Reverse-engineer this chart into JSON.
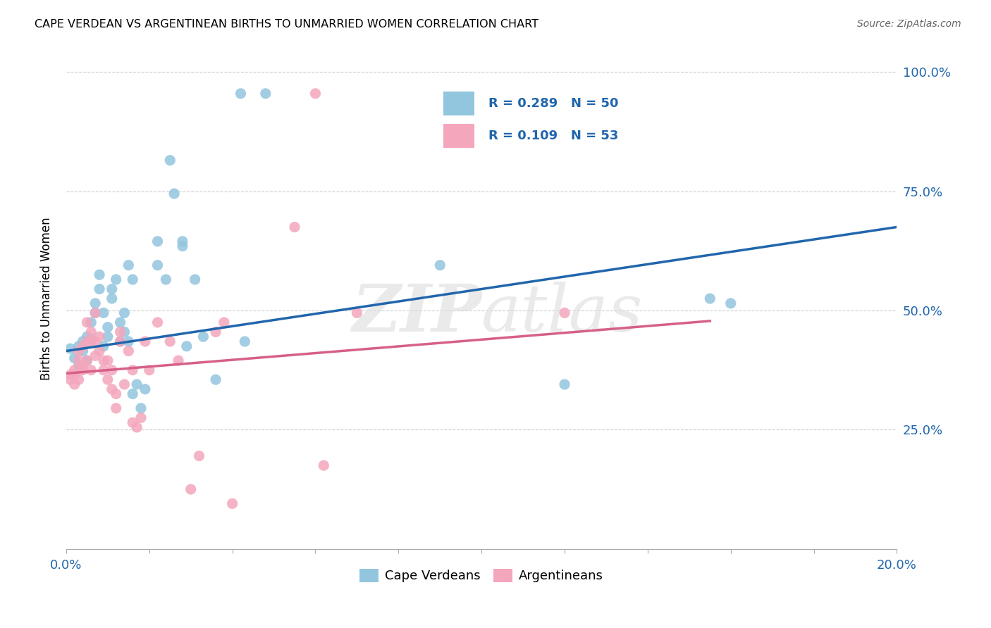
{
  "title": "CAPE VERDEAN VS ARGENTINEAN BIRTHS TO UNMARRIED WOMEN CORRELATION CHART",
  "source": "Source: ZipAtlas.com",
  "ylabel": "Births to Unmarried Women",
  "legend_blue_label": "Cape Verdeans",
  "legend_pink_label": "Argentineans",
  "watermark": "ZIPatlas",
  "blue_color": "#92c5de",
  "pink_color": "#f4a6bc",
  "blue_line_color": "#2166ac",
  "pink_line_color": "#d6608a",
  "blue_scatter": [
    [
      0.001,
      0.42
    ],
    [
      0.002,
      0.4
    ],
    [
      0.003,
      0.385
    ],
    [
      0.003,
      0.425
    ],
    [
      0.004,
      0.415
    ],
    [
      0.004,
      0.435
    ],
    [
      0.005,
      0.445
    ],
    [
      0.005,
      0.395
    ],
    [
      0.006,
      0.44
    ],
    [
      0.006,
      0.475
    ],
    [
      0.007,
      0.495
    ],
    [
      0.007,
      0.515
    ],
    [
      0.008,
      0.545
    ],
    [
      0.008,
      0.575
    ],
    [
      0.009,
      0.425
    ],
    [
      0.009,
      0.495
    ],
    [
      0.01,
      0.465
    ],
    [
      0.01,
      0.445
    ],
    [
      0.011,
      0.525
    ],
    [
      0.011,
      0.545
    ],
    [
      0.012,
      0.565
    ],
    [
      0.013,
      0.435
    ],
    [
      0.013,
      0.475
    ],
    [
      0.014,
      0.495
    ],
    [
      0.014,
      0.455
    ],
    [
      0.015,
      0.595
    ],
    [
      0.015,
      0.435
    ],
    [
      0.016,
      0.565
    ],
    [
      0.016,
      0.325
    ],
    [
      0.017,
      0.345
    ],
    [
      0.018,
      0.295
    ],
    [
      0.019,
      0.335
    ],
    [
      0.022,
      0.595
    ],
    [
      0.022,
      0.645
    ],
    [
      0.024,
      0.565
    ],
    [
      0.025,
      0.815
    ],
    [
      0.026,
      0.745
    ],
    [
      0.028,
      0.635
    ],
    [
      0.028,
      0.645
    ],
    [
      0.029,
      0.425
    ],
    [
      0.031,
      0.565
    ],
    [
      0.033,
      0.445
    ],
    [
      0.036,
      0.355
    ],
    [
      0.042,
      0.955
    ],
    [
      0.043,
      0.435
    ],
    [
      0.048,
      0.955
    ],
    [
      0.09,
      0.595
    ],
    [
      0.12,
      0.345
    ],
    [
      0.155,
      0.525
    ],
    [
      0.16,
      0.515
    ]
  ],
  "pink_scatter": [
    [
      0.001,
      0.355
    ],
    [
      0.001,
      0.365
    ],
    [
      0.002,
      0.345
    ],
    [
      0.002,
      0.375
    ],
    [
      0.002,
      0.365
    ],
    [
      0.003,
      0.355
    ],
    [
      0.003,
      0.395
    ],
    [
      0.003,
      0.415
    ],
    [
      0.004,
      0.375
    ],
    [
      0.004,
      0.385
    ],
    [
      0.004,
      0.425
    ],
    [
      0.005,
      0.395
    ],
    [
      0.005,
      0.435
    ],
    [
      0.005,
      0.475
    ],
    [
      0.006,
      0.375
    ],
    [
      0.006,
      0.435
    ],
    [
      0.006,
      0.455
    ],
    [
      0.007,
      0.405
    ],
    [
      0.007,
      0.435
    ],
    [
      0.007,
      0.495
    ],
    [
      0.008,
      0.415
    ],
    [
      0.008,
      0.445
    ],
    [
      0.009,
      0.375
    ],
    [
      0.009,
      0.395
    ],
    [
      0.01,
      0.355
    ],
    [
      0.01,
      0.395
    ],
    [
      0.011,
      0.335
    ],
    [
      0.011,
      0.375
    ],
    [
      0.012,
      0.325
    ],
    [
      0.012,
      0.295
    ],
    [
      0.013,
      0.435
    ],
    [
      0.013,
      0.455
    ],
    [
      0.014,
      0.345
    ],
    [
      0.015,
      0.415
    ],
    [
      0.016,
      0.375
    ],
    [
      0.016,
      0.265
    ],
    [
      0.017,
      0.255
    ],
    [
      0.018,
      0.275
    ],
    [
      0.019,
      0.435
    ],
    [
      0.02,
      0.375
    ],
    [
      0.022,
      0.475
    ],
    [
      0.025,
      0.435
    ],
    [
      0.027,
      0.395
    ],
    [
      0.03,
      0.125
    ],
    [
      0.032,
      0.195
    ],
    [
      0.036,
      0.455
    ],
    [
      0.038,
      0.475
    ],
    [
      0.04,
      0.095
    ],
    [
      0.055,
      0.675
    ],
    [
      0.06,
      0.955
    ],
    [
      0.062,
      0.175
    ],
    [
      0.07,
      0.495
    ],
    [
      0.12,
      0.495
    ]
  ],
  "xmin": 0.0,
  "xmax": 0.2,
  "ymin": 0.0,
  "ymax": 1.05,
  "yticks": [
    0.25,
    0.5,
    0.75,
    1.0
  ],
  "ytick_labels": [
    "25.0%",
    "50.0%",
    "75.0%",
    "100.0%"
  ],
  "blue_trend_x": [
    0.0,
    0.2
  ],
  "blue_trend_y": [
    0.415,
    0.675
  ],
  "pink_trend_x": [
    0.0,
    0.155
  ],
  "pink_trend_y": [
    0.368,
    0.478
  ]
}
